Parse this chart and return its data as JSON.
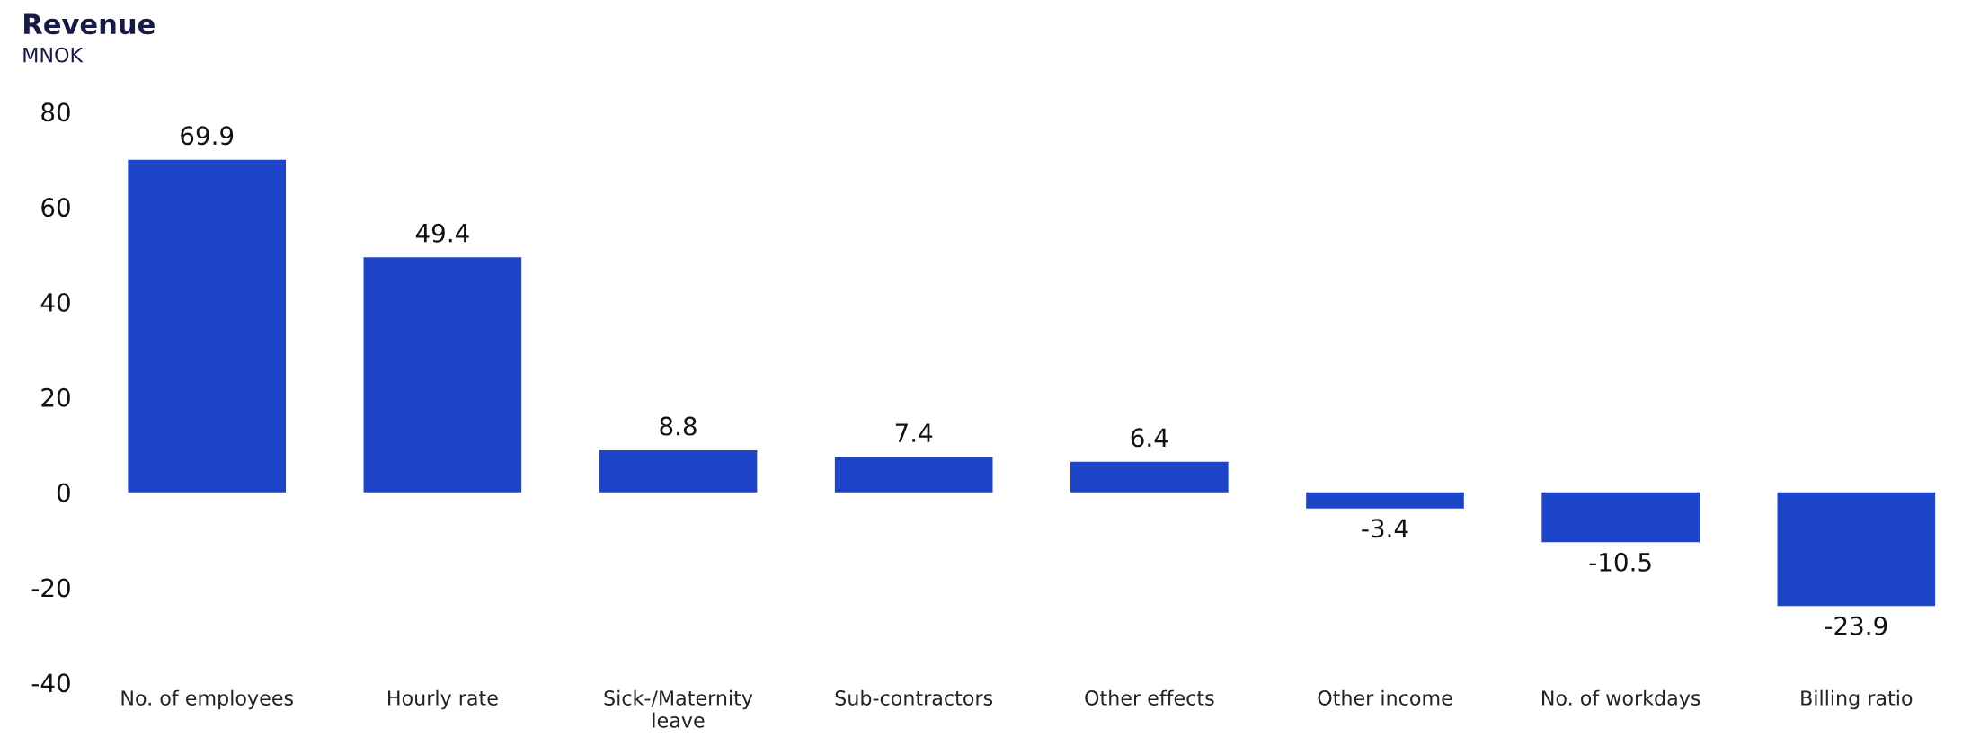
{
  "chart_data": {
    "type": "bar",
    "title": "Revenue",
    "subtitle": "MNOK",
    "categories": [
      "No. of employees",
      "Hourly rate",
      "Sick-/Maternity\nleave",
      "Sub-contractors",
      "Other effects",
      "Other income",
      "No. of workdays",
      "Billing ratio"
    ],
    "values": [
      69.9,
      49.4,
      8.8,
      7.4,
      6.4,
      -3.4,
      -10.5,
      -23.9
    ],
    "color": "#1e44c8",
    "ylim": [
      -40,
      80
    ],
    "yticks": [
      -40,
      -20,
      0,
      20,
      40,
      60,
      80
    ],
    "data_labels": true,
    "grid": false
  }
}
